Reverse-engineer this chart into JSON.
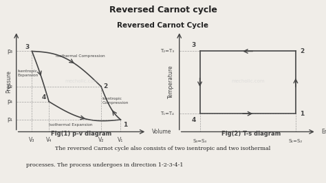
{
  "title_main": "Reversed Carnot cycle",
  "subtitle": "Reversed Carnot Cycle",
  "fig1_label": "Fig(1) p-v diagram",
  "fig2_label": "Fig(2) T-s diagram",
  "bg_color": "#f0ede8",
  "text_color": "#222222",
  "line_color": "#444444",
  "watermark": "mecholic.com",
  "pv": {
    "points": {
      "1": [
        0.8,
        0.12
      ],
      "2": [
        0.65,
        0.45
      ],
      "3": [
        0.12,
        0.8
      ],
      "4": [
        0.25,
        0.3
      ]
    }
  },
  "ts": {
    "points": {
      "1": [
        0.85,
        0.18
      ],
      "2": [
        0.85,
        0.8
      ],
      "3": [
        0.15,
        0.8
      ],
      "4": [
        0.15,
        0.18
      ]
    }
  },
  "bottom_text_line1": "The reversed Carnot cycle also consists of two isentropic and two isothermal",
  "bottom_text_line2": "processes. The process undergoes in direction 1-2-3-4-1"
}
